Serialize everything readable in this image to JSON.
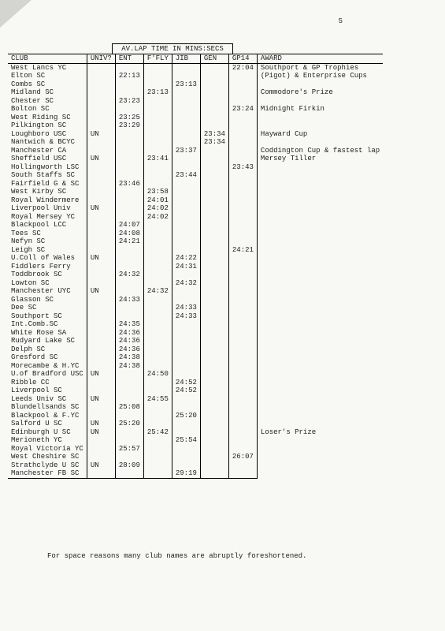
{
  "page_number": "5",
  "group_header": "AV.LAP TIME IN MINS:SECS",
  "columns": [
    "CLUB",
    "UNIV?",
    "ENT",
    "F'FLY",
    "JIB",
    "GEN",
    "GP14",
    "AWARD"
  ],
  "footnote": "For space reasons many club names are abruptly foreshortened.",
  "rows": [
    {
      "club": "West Lancs YC",
      "univ": "",
      "ent": "",
      "ffly": "",
      "jib": "",
      "gen": "",
      "gp14": "22:04",
      "award": "Southport & GP Trophies"
    },
    {
      "club": "Elton SC",
      "univ": "",
      "ent": "22:13",
      "ffly": "",
      "jib": "",
      "gen": "",
      "gp14": "",
      "award": "(Pigot) & Enterprise Cups"
    },
    {
      "club": "Combs SC",
      "univ": "",
      "ent": "",
      "ffly": "",
      "jib": "23:13",
      "gen": "",
      "gp14": "",
      "award": ""
    },
    {
      "club": "Midland SC",
      "univ": "",
      "ent": "",
      "ffly": "23:13",
      "jib": "",
      "gen": "",
      "gp14": "",
      "award": "Commodore's Prize"
    },
    {
      "club": "Chester SC",
      "univ": "",
      "ent": "23:23",
      "ffly": "",
      "jib": "",
      "gen": "",
      "gp14": "",
      "award": ""
    },
    {
      "club": "Bolton SC",
      "univ": "",
      "ent": "",
      "ffly": "",
      "jib": "",
      "gen": "",
      "gp14": "23:24",
      "award": "Midnight Firkin"
    },
    {
      "club": "West Riding SC",
      "univ": "",
      "ent": "23:25",
      "ffly": "",
      "jib": "",
      "gen": "",
      "gp14": "",
      "award": ""
    },
    {
      "club": "Pilkington SC",
      "univ": "",
      "ent": "23:29",
      "ffly": "",
      "jib": "",
      "gen": "",
      "gp14": "",
      "award": ""
    },
    {
      "club": "Loughboro USC",
      "univ": "UN",
      "ent": "",
      "ffly": "",
      "jib": "",
      "gen": "23:34",
      "gp14": "",
      "award": "Hayward Cup"
    },
    {
      "club": "Nantwich & BCYC",
      "univ": "",
      "ent": "",
      "ffly": "",
      "jib": "",
      "gen": "23:34",
      "gp14": "",
      "award": ""
    },
    {
      "club": "Manchester CA",
      "univ": "",
      "ent": "",
      "ffly": "",
      "jib": "23:37",
      "gen": "",
      "gp14": "",
      "award": "Coddington Cup & fastest lap"
    },
    {
      "club": "Sheffield USC",
      "univ": "UN",
      "ent": "",
      "ffly": "23:41",
      "jib": "",
      "gen": "",
      "gp14": "",
      "award": "Mersey Tiller"
    },
    {
      "club": "Hollingworth LSC",
      "univ": "",
      "ent": "",
      "ffly": "",
      "jib": "",
      "gen": "",
      "gp14": "23:43",
      "award": ""
    },
    {
      "club": "South Staffs SC",
      "univ": "",
      "ent": "",
      "ffly": "",
      "jib": "23:44",
      "gen": "",
      "gp14": "",
      "award": ""
    },
    {
      "club": "Fairfield G & SC",
      "univ": "",
      "ent": "23:46",
      "ffly": "",
      "jib": "",
      "gen": "",
      "gp14": "",
      "award": ""
    },
    {
      "club": "West Kirby SC",
      "univ": "",
      "ent": "",
      "ffly": "23:58",
      "jib": "",
      "gen": "",
      "gp14": "",
      "award": ""
    },
    {
      "club": "Royal Windermere",
      "univ": "",
      "ent": "",
      "ffly": "24:01",
      "jib": "",
      "gen": "",
      "gp14": "",
      "award": ""
    },
    {
      "club": "Liverpool Univ",
      "univ": "UN",
      "ent": "",
      "ffly": "24:02",
      "jib": "",
      "gen": "",
      "gp14": "",
      "award": ""
    },
    {
      "club": "Royal Mersey YC",
      "univ": "",
      "ent": "",
      "ffly": "24:02",
      "jib": "",
      "gen": "",
      "gp14": "",
      "award": ""
    },
    {
      "club": "Blackpool LCC",
      "univ": "",
      "ent": "24:07",
      "ffly": "",
      "jib": "",
      "gen": "",
      "gp14": "",
      "award": ""
    },
    {
      "club": "Tees SC",
      "univ": "",
      "ent": "24:08",
      "ffly": "",
      "jib": "",
      "gen": "",
      "gp14": "",
      "award": ""
    },
    {
      "club": "Nefyn SC",
      "univ": "",
      "ent": "24:21",
      "ffly": "",
      "jib": "",
      "gen": "",
      "gp14": "",
      "award": ""
    },
    {
      "club": "Leigh SC",
      "univ": "",
      "ent": "",
      "ffly": "",
      "jib": "",
      "gen": "",
      "gp14": "24:21",
      "award": ""
    },
    {
      "club": "U.Coll of Wales",
      "univ": "UN",
      "ent": "",
      "ffly": "",
      "jib": "24:22",
      "gen": "",
      "gp14": "",
      "award": ""
    },
    {
      "club": "Fiddlers Ferry",
      "univ": "",
      "ent": "",
      "ffly": "",
      "jib": "24:31",
      "gen": "",
      "gp14": "",
      "award": ""
    },
    {
      "club": "Toddbrook SC",
      "univ": "",
      "ent": "24:32",
      "ffly": "",
      "jib": "",
      "gen": "",
      "gp14": "",
      "award": ""
    },
    {
      "club": "Lowton SC",
      "univ": "",
      "ent": "",
      "ffly": "",
      "jib": "24:32",
      "gen": "",
      "gp14": "",
      "award": ""
    },
    {
      "club": "Manchester UYC",
      "univ": "UN",
      "ent": "",
      "ffly": "24:32",
      "jib": "",
      "gen": "",
      "gp14": "",
      "award": ""
    },
    {
      "club": "Glasson SC",
      "univ": "",
      "ent": "24:33",
      "ffly": "",
      "jib": "",
      "gen": "",
      "gp14": "",
      "award": ""
    },
    {
      "club": "Dee SC",
      "univ": "",
      "ent": "",
      "ffly": "",
      "jib": "24:33",
      "gen": "",
      "gp14": "",
      "award": ""
    },
    {
      "club": "Southport SC",
      "univ": "",
      "ent": "",
      "ffly": "",
      "jib": "24:33",
      "gen": "",
      "gp14": "",
      "award": ""
    },
    {
      "club": "Int.Comb.SC",
      "univ": "",
      "ent": "24:35",
      "ffly": "",
      "jib": "",
      "gen": "",
      "gp14": "",
      "award": ""
    },
    {
      "club": "White Rose SA",
      "univ": "",
      "ent": "24:36",
      "ffly": "",
      "jib": "",
      "gen": "",
      "gp14": "",
      "award": ""
    },
    {
      "club": "Rudyard Lake SC",
      "univ": "",
      "ent": "24:36",
      "ffly": "",
      "jib": "",
      "gen": "",
      "gp14": "",
      "award": ""
    },
    {
      "club": "Delph SC",
      "univ": "",
      "ent": "24:36",
      "ffly": "",
      "jib": "",
      "gen": "",
      "gp14": "",
      "award": ""
    },
    {
      "club": "Gresford SC",
      "univ": "",
      "ent": "24:38",
      "ffly": "",
      "jib": "",
      "gen": "",
      "gp14": "",
      "award": ""
    },
    {
      "club": "Morecambe & H.YC",
      "univ": "",
      "ent": "24:38",
      "ffly": "",
      "jib": "",
      "gen": "",
      "gp14": "",
      "award": ""
    },
    {
      "club": "U.of Bradford USC",
      "univ": "UN",
      "ent": "",
      "ffly": "24:50",
      "jib": "",
      "gen": "",
      "gp14": "",
      "award": ""
    },
    {
      "club": "Ribble CC",
      "univ": "",
      "ent": "",
      "ffly": "",
      "jib": "24:52",
      "gen": "",
      "gp14": "",
      "award": ""
    },
    {
      "club": "Liverpool SC",
      "univ": "",
      "ent": "",
      "ffly": "",
      "jib": "24:52",
      "gen": "",
      "gp14": "",
      "award": ""
    },
    {
      "club": "Leeds Univ SC",
      "univ": "UN",
      "ent": "",
      "ffly": "24:55",
      "jib": "",
      "gen": "",
      "gp14": "",
      "award": ""
    },
    {
      "club": "Blundellsands SC",
      "univ": "",
      "ent": "25:08",
      "ffly": "",
      "jib": "",
      "gen": "",
      "gp14": "",
      "award": ""
    },
    {
      "club": "Blackpool & F.YC",
      "univ": "",
      "ent": "",
      "ffly": "",
      "jib": "25:20",
      "gen": "",
      "gp14": "",
      "award": ""
    },
    {
      "club": "Salford U SC",
      "univ": "UN",
      "ent": "25:20",
      "ffly": "",
      "jib": "",
      "gen": "",
      "gp14": "",
      "award": ""
    },
    {
      "club": "Edinburgh U SC",
      "univ": "UN",
      "ent": "",
      "ffly": "25:42",
      "jib": "",
      "gen": "",
      "gp14": "",
      "award": "Loser's Prize"
    },
    {
      "club": "Merioneth YC",
      "univ": "",
      "ent": "",
      "ffly": "",
      "jib": "25:54",
      "gen": "",
      "gp14": "",
      "award": ""
    },
    {
      "club": "Royal Victoria YC",
      "univ": "",
      "ent": "25:57",
      "ffly": "",
      "jib": "",
      "gen": "",
      "gp14": "",
      "award": ""
    },
    {
      "club": "West Cheshire SC",
      "univ": "",
      "ent": "",
      "ffly": "",
      "jib": "",
      "gen": "",
      "gp14": "26:07",
      "award": ""
    },
    {
      "club": "Strathclyde U SC",
      "univ": "UN",
      "ent": "28:09",
      "ffly": "",
      "jib": "",
      "gen": "",
      "gp14": "",
      "award": ""
    },
    {
      "club": "Manchester FB SC",
      "univ": "",
      "ent": "",
      "ffly": "",
      "jib": "29:19",
      "gen": "",
      "gp14": "",
      "award": ""
    }
  ]
}
